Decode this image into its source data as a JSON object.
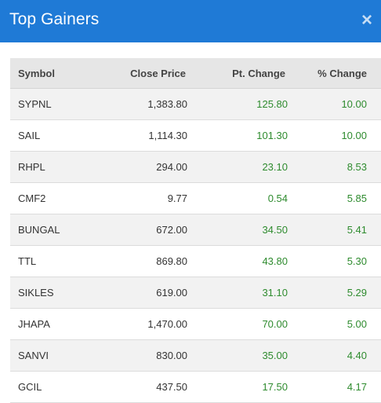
{
  "dialog": {
    "title": "Top Gainers",
    "close_symbol": "×"
  },
  "table": {
    "headers": {
      "symbol": "Symbol",
      "close_price": "Close Price",
      "pt_change": "Pt. Change",
      "pct_change": "% Change"
    },
    "rows": [
      {
        "symbol": "SYPNL",
        "close_price": "1,383.80",
        "pt_change": "125.80",
        "pct_change": "10.00"
      },
      {
        "symbol": "SAIL",
        "close_price": "1,114.30",
        "pt_change": "101.30",
        "pct_change": "10.00"
      },
      {
        "symbol": "RHPL",
        "close_price": "294.00",
        "pt_change": "23.10",
        "pct_change": "8.53"
      },
      {
        "symbol": "CMF2",
        "close_price": "9.77",
        "pt_change": "0.54",
        "pct_change": "5.85"
      },
      {
        "symbol": "BUNGAL",
        "close_price": "672.00",
        "pt_change": "34.50",
        "pct_change": "5.41"
      },
      {
        "symbol": "TTL",
        "close_price": "869.80",
        "pt_change": "43.80",
        "pct_change": "5.30"
      },
      {
        "symbol": "SIKLES",
        "close_price": "619.00",
        "pt_change": "31.10",
        "pct_change": "5.29"
      },
      {
        "symbol": "JHAPA",
        "close_price": "1,470.00",
        "pt_change": "70.00",
        "pct_change": "5.00"
      },
      {
        "symbol": "SANVI",
        "close_price": "830.00",
        "pt_change": "35.00",
        "pct_change": "4.40"
      },
      {
        "symbol": "GCIL",
        "close_price": "437.50",
        "pt_change": "17.50",
        "pct_change": "4.17"
      }
    ]
  },
  "colors": {
    "header_bg": "#1f7ad6",
    "positive": "#2e8b2e"
  }
}
